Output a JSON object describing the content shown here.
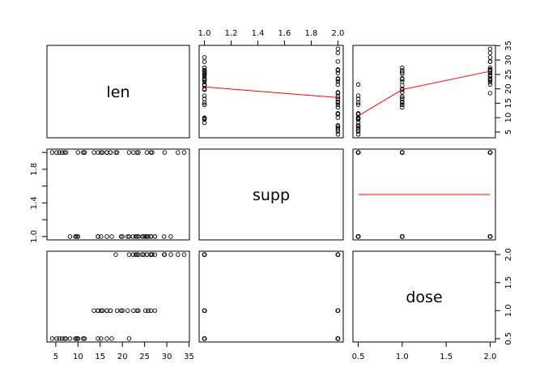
{
  "chart_data": {
    "type": "scatter",
    "variables": [
      "len",
      "supp",
      "dose"
    ],
    "axes": {
      "len": {
        "range": [
          4.2,
          33.9
        ],
        "ticks": [
          5,
          10,
          15,
          20,
          25,
          30,
          35
        ],
        "tick_labels": [
          "5",
          "10",
          "15",
          "20",
          "25",
          "30",
          "35"
        ]
      },
      "supp": {
        "range": [
          1.0,
          2.0
        ],
        "ticks": [
          1.0,
          1.2,
          1.4,
          1.6,
          1.8,
          2.0
        ],
        "tick_labels": [
          "1.0",
          "1.2",
          "1.4",
          "1.6",
          "1.8",
          "2.0"
        ]
      },
      "dose": {
        "range": [
          0.5,
          2.0
        ],
        "ticks": [
          0.5,
          1.0,
          1.5,
          2.0
        ],
        "tick_labels": [
          "0.5",
          "1.0",
          "1.5",
          "2.0"
        ]
      }
    },
    "vertical_tick_labels": {
      "supp": [
        "1.0",
        "1.4",
        "1.8"
      ]
    },
    "observations": [
      {
        "len": 4.2,
        "supp": 2,
        "dose": 0.5
      },
      {
        "len": 11.5,
        "supp": 2,
        "dose": 0.5
      },
      {
        "len": 7.3,
        "supp": 2,
        "dose": 0.5
      },
      {
        "len": 5.8,
        "supp": 2,
        "dose": 0.5
      },
      {
        "len": 6.4,
        "supp": 2,
        "dose": 0.5
      },
      {
        "len": 10.0,
        "supp": 2,
        "dose": 0.5
      },
      {
        "len": 11.2,
        "supp": 2,
        "dose": 0.5
      },
      {
        "len": 11.2,
        "supp": 2,
        "dose": 0.5
      },
      {
        "len": 5.2,
        "supp": 2,
        "dose": 0.5
      },
      {
        "len": 7.0,
        "supp": 2,
        "dose": 0.5
      },
      {
        "len": 16.5,
        "supp": 2,
        "dose": 1.0
      },
      {
        "len": 16.5,
        "supp": 2,
        "dose": 1.0
      },
      {
        "len": 15.2,
        "supp": 2,
        "dose": 1.0
      },
      {
        "len": 17.3,
        "supp": 2,
        "dose": 1.0
      },
      {
        "len": 22.5,
        "supp": 2,
        "dose": 1.0
      },
      {
        "len": 17.3,
        "supp": 2,
        "dose": 1.0
      },
      {
        "len": 13.6,
        "supp": 2,
        "dose": 1.0
      },
      {
        "len": 14.5,
        "supp": 2,
        "dose": 1.0
      },
      {
        "len": 18.8,
        "supp": 2,
        "dose": 1.0
      },
      {
        "len": 15.5,
        "supp": 2,
        "dose": 1.0
      },
      {
        "len": 23.6,
        "supp": 2,
        "dose": 2.0
      },
      {
        "len": 18.5,
        "supp": 2,
        "dose": 2.0
      },
      {
        "len": 33.9,
        "supp": 2,
        "dose": 2.0
      },
      {
        "len": 25.5,
        "supp": 2,
        "dose": 2.0
      },
      {
        "len": 26.4,
        "supp": 2,
        "dose": 2.0
      },
      {
        "len": 32.5,
        "supp": 2,
        "dose": 2.0
      },
      {
        "len": 26.7,
        "supp": 2,
        "dose": 2.0
      },
      {
        "len": 21.5,
        "supp": 2,
        "dose": 2.0
      },
      {
        "len": 23.3,
        "supp": 2,
        "dose": 2.0
      },
      {
        "len": 29.5,
        "supp": 2,
        "dose": 2.0
      },
      {
        "len": 15.2,
        "supp": 1,
        "dose": 0.5
      },
      {
        "len": 21.5,
        "supp": 1,
        "dose": 0.5
      },
      {
        "len": 17.6,
        "supp": 1,
        "dose": 0.5
      },
      {
        "len": 9.7,
        "supp": 1,
        "dose": 0.5
      },
      {
        "len": 14.5,
        "supp": 1,
        "dose": 0.5
      },
      {
        "len": 10.0,
        "supp": 1,
        "dose": 0.5
      },
      {
        "len": 8.2,
        "supp": 1,
        "dose": 0.5
      },
      {
        "len": 9.4,
        "supp": 1,
        "dose": 0.5
      },
      {
        "len": 16.5,
        "supp": 1,
        "dose": 0.5
      },
      {
        "len": 9.7,
        "supp": 1,
        "dose": 0.5
      },
      {
        "len": 19.7,
        "supp": 1,
        "dose": 1.0
      },
      {
        "len": 23.3,
        "supp": 1,
        "dose": 1.0
      },
      {
        "len": 23.6,
        "supp": 1,
        "dose": 1.0
      },
      {
        "len": 26.4,
        "supp": 1,
        "dose": 1.0
      },
      {
        "len": 20.0,
        "supp": 1,
        "dose": 1.0
      },
      {
        "len": 25.2,
        "supp": 1,
        "dose": 1.0
      },
      {
        "len": 25.8,
        "supp": 1,
        "dose": 1.0
      },
      {
        "len": 21.2,
        "supp": 1,
        "dose": 1.0
      },
      {
        "len": 14.5,
        "supp": 1,
        "dose": 1.0
      },
      {
        "len": 27.3,
        "supp": 1,
        "dose": 1.0
      },
      {
        "len": 25.5,
        "supp": 1,
        "dose": 2.0
      },
      {
        "len": 26.4,
        "supp": 1,
        "dose": 2.0
      },
      {
        "len": 22.4,
        "supp": 1,
        "dose": 2.0
      },
      {
        "len": 24.5,
        "supp": 1,
        "dose": 2.0
      },
      {
        "len": 24.8,
        "supp": 1,
        "dose": 2.0
      },
      {
        "len": 30.9,
        "supp": 1,
        "dose": 2.0
      },
      {
        "len": 26.4,
        "supp": 1,
        "dose": 2.0
      },
      {
        "len": 27.3,
        "supp": 1,
        "dose": 2.0
      },
      {
        "len": 29.4,
        "supp": 1,
        "dose": 2.0
      },
      {
        "len": 23.0,
        "supp": 1,
        "dose": 2.0
      }
    ],
    "smoothers": [
      {
        "row": "len",
        "col": "supp",
        "color": "#ff0000",
        "points": [
          [
            1,
            20.66
          ],
          [
            2,
            16.96
          ]
        ]
      },
      {
        "row": "len",
        "col": "dose",
        "color": "#ff0000",
        "points": [
          [
            0.5,
            10.6
          ],
          [
            1.0,
            19.74
          ],
          [
            2.0,
            26.1
          ]
        ]
      },
      {
        "row": "supp",
        "col": "dose",
        "color": "#ff0000",
        "points": [
          [
            0.5,
            1.5
          ],
          [
            1.0,
            1.5
          ],
          [
            2.0,
            1.5
          ]
        ]
      }
    ],
    "grid": false,
    "legend": "none",
    "title": "",
    "xlabel": "",
    "ylabel": ""
  }
}
